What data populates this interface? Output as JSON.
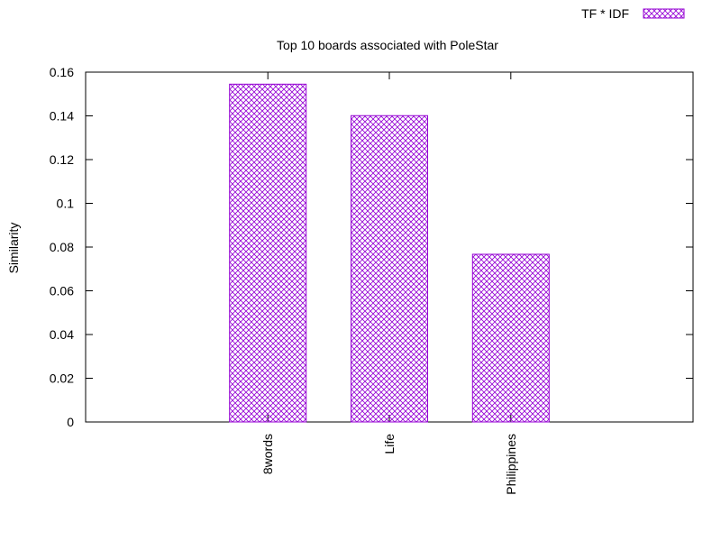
{
  "chart_data": {
    "type": "bar",
    "title": "Top 10 boards associated with PoleStar",
    "xlabel": "",
    "ylabel": "Similarity",
    "categories": [
      "8words",
      "Life",
      "Philippines"
    ],
    "series": [
      {
        "name": "TF * IDF",
        "values": [
          0.1545,
          0.1401,
          0.0767
        ]
      }
    ],
    "ylim": [
      0,
      0.16
    ],
    "yticks": [
      "0",
      "0.02",
      "0.04",
      "0.06",
      "0.08",
      "0.1",
      "0.12",
      "0.14",
      "0.16"
    ],
    "grid": false,
    "legend_position": "top-right",
    "colors": {
      "bar_border": "#9400d3",
      "bar_pattern": "#9400d3",
      "axis": "#000000"
    }
  }
}
